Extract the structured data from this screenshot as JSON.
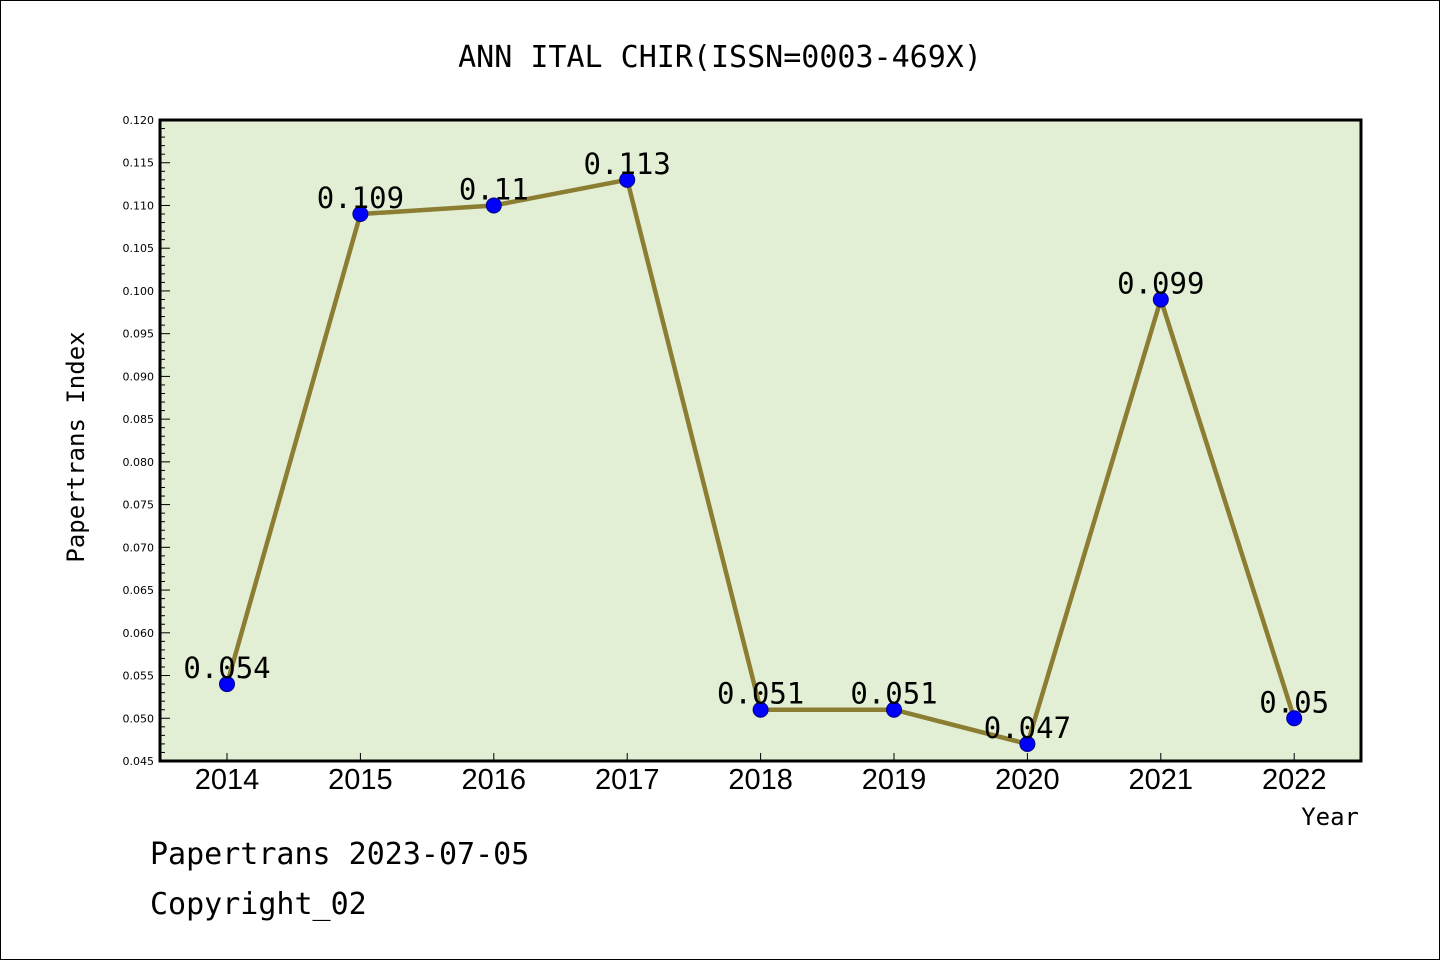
{
  "chart_data": {
    "type": "line",
    "title": "ANN ITAL CHIR(ISSN=0003-469X)",
    "xlabel": "Year",
    "ylabel": "Papertrans Index",
    "categories": [
      "2014",
      "2015",
      "2016",
      "2017",
      "2018",
      "2019",
      "2020",
      "2021",
      "2022"
    ],
    "series": [
      {
        "values": [
          0.054,
          0.109,
          0.11,
          0.113,
          0.051,
          0.051,
          0.047,
          0.099,
          0.05
        ],
        "data_labels": [
          "0.054",
          "0.109",
          "0.11",
          "0.113",
          "0.051",
          "0.051",
          "0.047",
          "0.099",
          "0.05"
        ]
      }
    ],
    "ylim": [
      0.045,
      0.12
    ],
    "yticks": [
      "0.045",
      "0.050",
      "0.055",
      "0.060",
      "0.065",
      "0.070",
      "0.075",
      "0.080",
      "0.085",
      "0.090",
      "0.095",
      "0.100",
      "0.105",
      "0.110",
      "0.115",
      "0.120"
    ],
    "grid": false,
    "legend": "none",
    "colors": {
      "plot_background": "#e2efd5",
      "line": "#8b7d32",
      "marker_fill": "#0000ff",
      "marker_edge": "#000080",
      "axes": "#000000"
    }
  },
  "footer": {
    "line1": "Papertrans 2023-07-05",
    "line2": "Copyright_02"
  }
}
